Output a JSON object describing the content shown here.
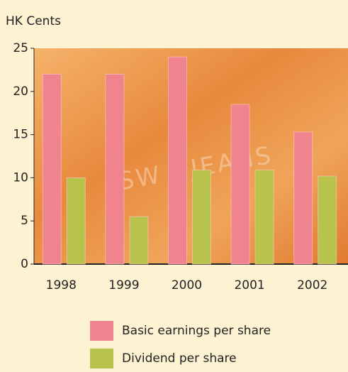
{
  "chart_data": {
    "type": "bar",
    "y_label": "HK Cents",
    "watermark": "JSW / JEANS",
    "categories": [
      "1998",
      "1999",
      "2000",
      "2001",
      "2002"
    ],
    "series": [
      {
        "name": "Basic earnings per share",
        "color": "#f0848e",
        "values": [
          22.0,
          22.0,
          24.0,
          18.5,
          15.3
        ]
      },
      {
        "name": "Dividend per share",
        "color": "#b8c34c",
        "values": [
          10.0,
          5.5,
          10.9,
          10.9,
          10.2
        ]
      }
    ],
    "ylim": [
      0,
      25
    ],
    "yticks": [
      0,
      5,
      10,
      15,
      20,
      25
    ]
  }
}
